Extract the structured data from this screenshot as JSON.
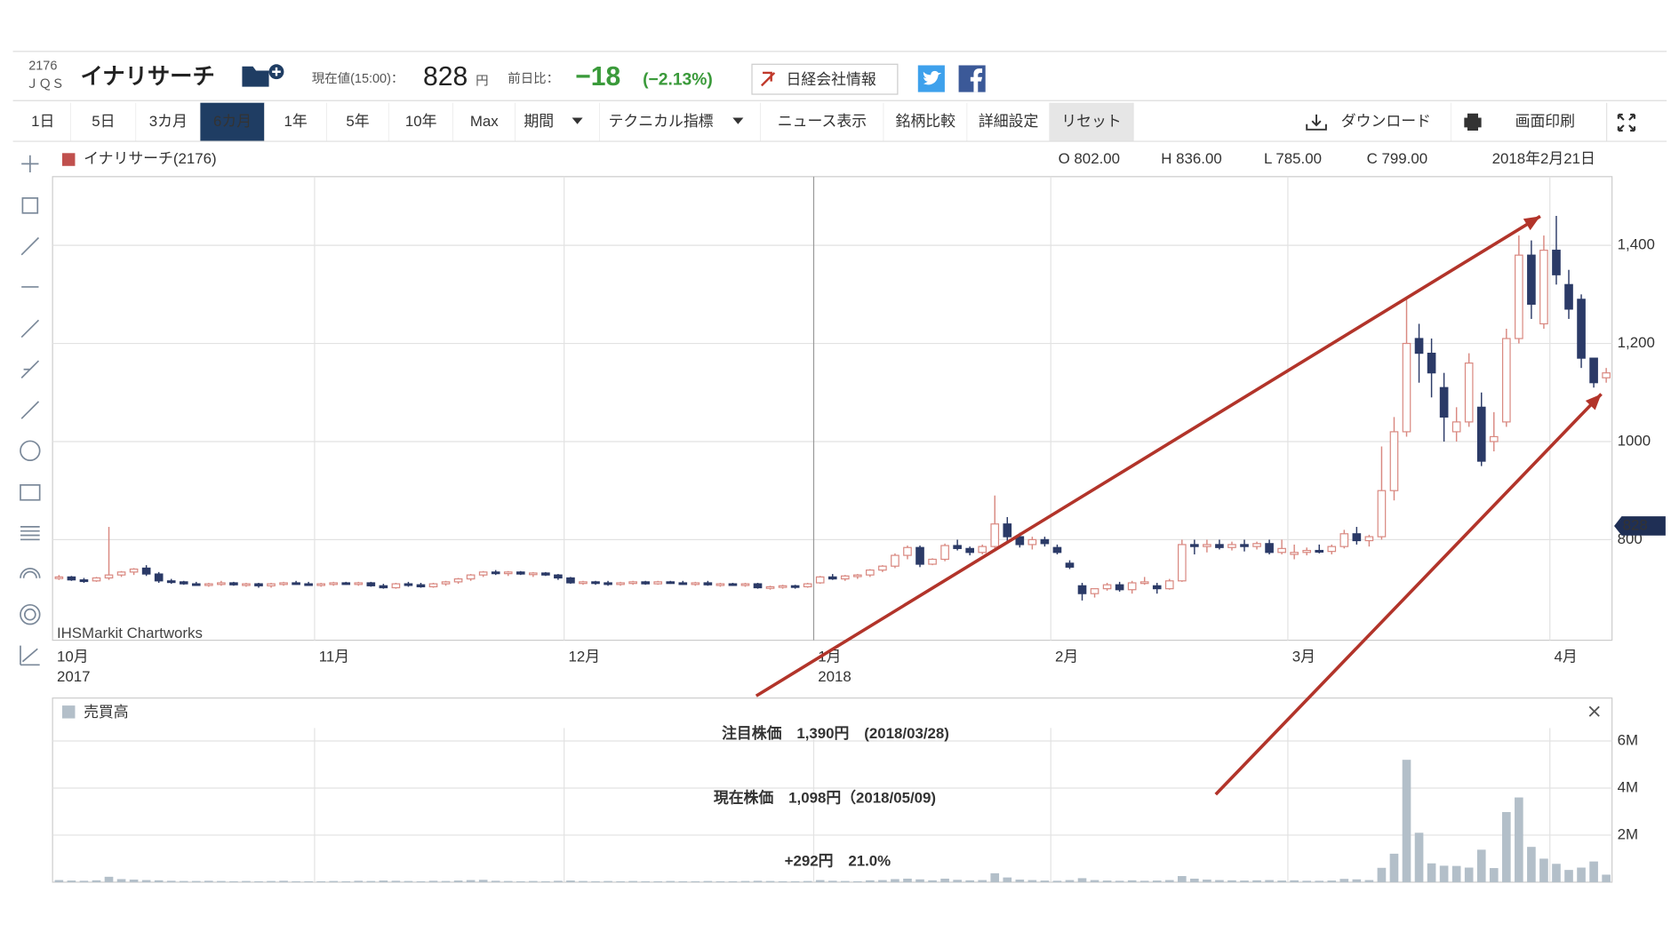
{
  "header": {
    "code": "2176",
    "market": "ＪＱＳ",
    "name": "イナリサーチ",
    "price_label": "現在値(15:00)：",
    "price": "828",
    "price_unit": "円",
    "change_label": "前日比：",
    "change": "−18",
    "change_pct": "(−2.13%)",
    "nikkei": "日経会社情報"
  },
  "toolbar": [
    "1日",
    "5日",
    "3カ月",
    "6カ月",
    "1年",
    "5年",
    "10年",
    "Max",
    "期間",
    "テクニカル指標",
    "ニュース表示",
    "銘柄比較",
    "詳細設定",
    "リセット",
    "ダウンロード",
    "画面印刷"
  ],
  "chart_data": {
    "type": "candlestick",
    "series_name": "イナリサーチ(2176)",
    "ohlc_info": [
      "O 802.00",
      "H 836.00",
      "L 785.00",
      "C 799.00",
      "2018年2月21日"
    ],
    "source": "IHSMarkit Chartworks",
    "up_color": "#d98880",
    "down_color": "#2b3a67",
    "last_price": 828,
    "last_price_color": "#1f2f55",
    "ylim": [
      595,
      1540
    ],
    "yticks": [
      800,
      1000,
      {
        "value": 1200,
        "label": "1,200"
      },
      {
        "value": 1400,
        "label": "1,400"
      }
    ],
    "grid": true,
    "categories": [
      "10月",
      null,
      null,
      null,
      null,
      null,
      null,
      null,
      null,
      null,
      null,
      null,
      null,
      null,
      null,
      null,
      null,
      null,
      null,
      null,
      null,
      "11月",
      null,
      null,
      null,
      null,
      null,
      null,
      null,
      null,
      null,
      null,
      null,
      null,
      null,
      null,
      null,
      null,
      null,
      null,
      null,
      "12月",
      null,
      null,
      null,
      null,
      null,
      null,
      null,
      null,
      null,
      null,
      null,
      null,
      null,
      null,
      null,
      null,
      null,
      null,
      null,
      "1月",
      null,
      null,
      null,
      null,
      null,
      null,
      null,
      null,
      null,
      null,
      null,
      null,
      null,
      null,
      null,
      null,
      null,
      null,
      "2月",
      null,
      null,
      null,
      null,
      null,
      null,
      null,
      null,
      null,
      null,
      null,
      null,
      null,
      null,
      null,
      null,
      null,
      null,
      "3月",
      null,
      null,
      null,
      null,
      null,
      null,
      null,
      null,
      null,
      null,
      null,
      null,
      null,
      null,
      null,
      null,
      null,
      null,
      null,
      null,
      "4月",
      null,
      null,
      null,
      null
    ],
    "year_labels": [
      "2017",
      null,
      null,
      null,
      null,
      null,
      null,
      null,
      null,
      null,
      null,
      null,
      null,
      null,
      null,
      null,
      null,
      null,
      null,
      null,
      null,
      null,
      null,
      null,
      null,
      null,
      null,
      null,
      null,
      null,
      null,
      null,
      null,
      null,
      null,
      null,
      null,
      null,
      null,
      null,
      null,
      null,
      null,
      null,
      null,
      null,
      null,
      null,
      null,
      null,
      null,
      null,
      null,
      null,
      null,
      null,
      null,
      null,
      null,
      null,
      null,
      "2018",
      null,
      null,
      null,
      null,
      null,
      null,
      null,
      null,
      null,
      null,
      null,
      null,
      null,
      null,
      null,
      null,
      null,
      null,
      null,
      null,
      null,
      null,
      null,
      null,
      null,
      null,
      null,
      null,
      null,
      null,
      null,
      null,
      null,
      null,
      null,
      null,
      null,
      null,
      null,
      null,
      null,
      null,
      null,
      null,
      null,
      null,
      null,
      null,
      null,
      null,
      null,
      null,
      null,
      null,
      null,
      null,
      null,
      null,
      null,
      null,
      null,
      null,
      null,
      null,
      null,
      null,
      null
    ],
    "candles": [
      [
        722,
        728,
        718,
        724
      ],
      [
        724,
        726,
        716,
        718
      ],
      [
        718,
        722,
        712,
        716
      ],
      [
        716,
        724,
        714,
        722
      ],
      [
        722,
        826,
        718,
        728
      ],
      [
        728,
        736,
        724,
        734
      ],
      [
        734,
        742,
        728,
        740
      ],
      [
        742,
        748,
        726,
        730
      ],
      [
        730,
        734,
        712,
        716
      ],
      [
        716,
        720,
        710,
        714
      ],
      [
        714,
        716,
        708,
        710
      ],
      [
        710,
        714,
        706,
        708
      ],
      [
        708,
        712,
        704,
        710
      ],
      [
        710,
        716,
        706,
        712
      ],
      [
        712,
        714,
        706,
        708
      ],
      [
        708,
        712,
        704,
        710
      ],
      [
        710,
        712,
        702,
        706
      ],
      [
        706,
        712,
        702,
        710
      ],
      [
        710,
        714,
        706,
        712
      ],
      [
        712,
        716,
        708,
        710
      ],
      [
        710,
        714,
        706,
        708
      ],
      [
        708,
        712,
        704,
        710
      ],
      [
        710,
        714,
        706,
        712
      ],
      [
        712,
        714,
        708,
        710
      ],
      [
        710,
        714,
        706,
        712
      ],
      [
        712,
        714,
        704,
        706
      ],
      [
        706,
        710,
        700,
        702
      ],
      [
        702,
        712,
        700,
        710
      ],
      [
        710,
        714,
        704,
        708
      ],
      [
        708,
        712,
        702,
        704
      ],
      [
        704,
        712,
        702,
        710
      ],
      [
        710,
        716,
        706,
        714
      ],
      [
        714,
        722,
        710,
        720
      ],
      [
        720,
        730,
        716,
        728
      ],
      [
        728,
        736,
        724,
        734
      ],
      [
        734,
        738,
        728,
        732
      ],
      [
        732,
        736,
        726,
        734
      ],
      [
        734,
        736,
        728,
        730
      ],
      [
        730,
        734,
        724,
        732
      ],
      [
        732,
        734,
        726,
        728
      ],
      [
        728,
        730,
        718,
        722
      ],
      [
        722,
        724,
        710,
        712
      ],
      [
        712,
        716,
        708,
        714
      ],
      [
        714,
        716,
        708,
        712
      ],
      [
        712,
        716,
        706,
        710
      ],
      [
        710,
        714,
        706,
        712
      ],
      [
        712,
        716,
        708,
        714
      ],
      [
        714,
        716,
        708,
        710
      ],
      [
        710,
        716,
        708,
        714
      ],
      [
        714,
        716,
        710,
        712
      ],
      [
        712,
        716,
        708,
        710
      ],
      [
        710,
        714,
        706,
        712
      ],
      [
        712,
        716,
        706,
        708
      ],
      [
        708,
        712,
        704,
        710
      ],
      [
        710,
        712,
        706,
        708
      ],
      [
        708,
        712,
        704,
        710
      ],
      [
        710,
        712,
        700,
        702
      ],
      [
        702,
        706,
        698,
        704
      ],
      [
        704,
        708,
        700,
        706
      ],
      [
        706,
        708,
        700,
        704
      ],
      [
        704,
        712,
        702,
        710
      ],
      [
        712,
        726,
        710,
        724
      ],
      [
        724,
        730,
        718,
        720
      ],
      [
        720,
        728,
        716,
        726
      ],
      [
        726,
        730,
        720,
        728
      ],
      [
        728,
        740,
        724,
        738
      ],
      [
        738,
        748,
        734,
        746
      ],
      [
        746,
        772,
        742,
        768
      ],
      [
        768,
        788,
        760,
        784
      ],
      [
        784,
        788,
        744,
        750
      ],
      [
        750,
        762,
        748,
        760
      ],
      [
        760,
        792,
        756,
        788
      ],
      [
        788,
        800,
        778,
        782
      ],
      [
        782,
        786,
        768,
        774
      ],
      [
        774,
        790,
        770,
        786
      ],
      [
        786,
        890,
        780,
        832
      ],
      [
        832,
        846,
        796,
        806
      ],
      [
        806,
        814,
        784,
        790
      ],
      [
        790,
        806,
        780,
        800
      ],
      [
        800,
        806,
        786,
        792
      ],
      [
        784,
        790,
        770,
        774
      ],
      [
        752,
        758,
        740,
        744
      ],
      [
        706,
        712,
        676,
        690
      ],
      [
        690,
        700,
        682,
        700
      ],
      [
        700,
        712,
        696,
        708
      ],
      [
        708,
        714,
        694,
        698
      ],
      [
        698,
        716,
        690,
        712
      ],
      [
        712,
        724,
        708,
        714
      ],
      [
        706,
        712,
        690,
        700
      ],
      [
        700,
        720,
        698,
        716
      ],
      [
        716,
        800,
        714,
        790
      ],
      [
        790,
        800,
        770,
        786
      ],
      [
        786,
        800,
        774,
        790
      ],
      [
        790,
        800,
        780,
        784
      ],
      [
        784,
        796,
        778,
        790
      ],
      [
        790,
        800,
        776,
        786
      ],
      [
        786,
        796,
        780,
        792
      ],
      [
        792,
        800,
        770,
        774
      ],
      [
        774,
        800,
        770,
        782
      ],
      [
        770,
        790,
        760,
        774
      ],
      [
        774,
        784,
        768,
        778
      ],
      [
        778,
        790,
        772,
        776
      ],
      [
        776,
        790,
        770,
        786
      ],
      [
        786,
        820,
        782,
        812
      ],
      [
        812,
        826,
        790,
        798
      ],
      [
        798,
        810,
        786,
        806
      ],
      [
        806,
        990,
        800,
        900
      ],
      [
        900,
        1050,
        880,
        1020
      ],
      [
        1020,
        1290,
        1010,
        1200
      ],
      [
        1210,
        1240,
        1120,
        1180
      ],
      [
        1180,
        1210,
        1090,
        1140
      ],
      [
        1110,
        1140,
        1000,
        1050
      ],
      [
        1020,
        1070,
        1000,
        1040
      ],
      [
        1040,
        1180,
        1030,
        1160
      ],
      [
        1070,
        1100,
        950,
        960
      ],
      [
        1000,
        1060,
        980,
        1010
      ],
      [
        1040,
        1230,
        1030,
        1210
      ],
      [
        1210,
        1420,
        1200,
        1380
      ],
      [
        1380,
        1410,
        1250,
        1280
      ],
      [
        1240,
        1420,
        1230,
        1390
      ],
      [
        1390,
        1460,
        1320,
        1340
      ],
      [
        1320,
        1350,
        1250,
        1270
      ],
      [
        1290,
        1300,
        1150,
        1170
      ],
      [
        1170,
        1170,
        1110,
        1120
      ],
      [
        1130,
        1150,
        1120,
        1140
      ]
    ],
    "volume": {
      "title": "売買高",
      "color": "#b3bfc9",
      "ylim": [
        0,
        6550000
      ],
      "yticks": [
        {
          "value": 2000000,
          "label": "2M"
        },
        {
          "value": 4000000,
          "label": "4M"
        },
        {
          "value": 6000000,
          "label": "6M"
        }
      ],
      "values": [
        90000,
        70000,
        60000,
        80000,
        230000,
        130000,
        110000,
        90000,
        80000,
        60000,
        50000,
        50000,
        60000,
        50000,
        40000,
        50000,
        40000,
        50000,
        60000,
        40000,
        40000,
        40000,
        50000,
        40000,
        60000,
        50000,
        70000,
        60000,
        50000,
        40000,
        60000,
        50000,
        70000,
        90000,
        100000,
        60000,
        50000,
        40000,
        50000,
        40000,
        60000,
        70000,
        50000,
        40000,
        50000,
        40000,
        50000,
        40000,
        40000,
        50000,
        40000,
        40000,
        50000,
        40000,
        40000,
        50000,
        60000,
        50000,
        40000,
        40000,
        50000,
        90000,
        60000,
        50000,
        40000,
        80000,
        90000,
        130000,
        150000,
        120000,
        80000,
        150000,
        100000,
        80000,
        90000,
        380000,
        200000,
        110000,
        90000,
        70000,
        60000,
        90000,
        170000,
        90000,
        70000,
        60000,
        80000,
        60000,
        70000,
        90000,
        260000,
        150000,
        110000,
        90000,
        80000,
        70000,
        80000,
        90000,
        70000,
        80000,
        60000,
        60000,
        70000,
        140000,
        120000,
        90000,
        610000,
        1210000,
        5200000,
        2100000,
        800000,
        700000,
        690000,
        620000,
        1380000,
        600000,
        2980000,
        3600000,
        1500000,
        1000000,
        780000,
        520000,
        620000,
        880000,
        320000
      ]
    },
    "annotations": [
      "注目株価　1,390円　(2018/03/28)",
      "現在株価　1,098円（2018/05/09)",
      "+292円　21.0%"
    ],
    "annotation_color": "#b2342a"
  }
}
